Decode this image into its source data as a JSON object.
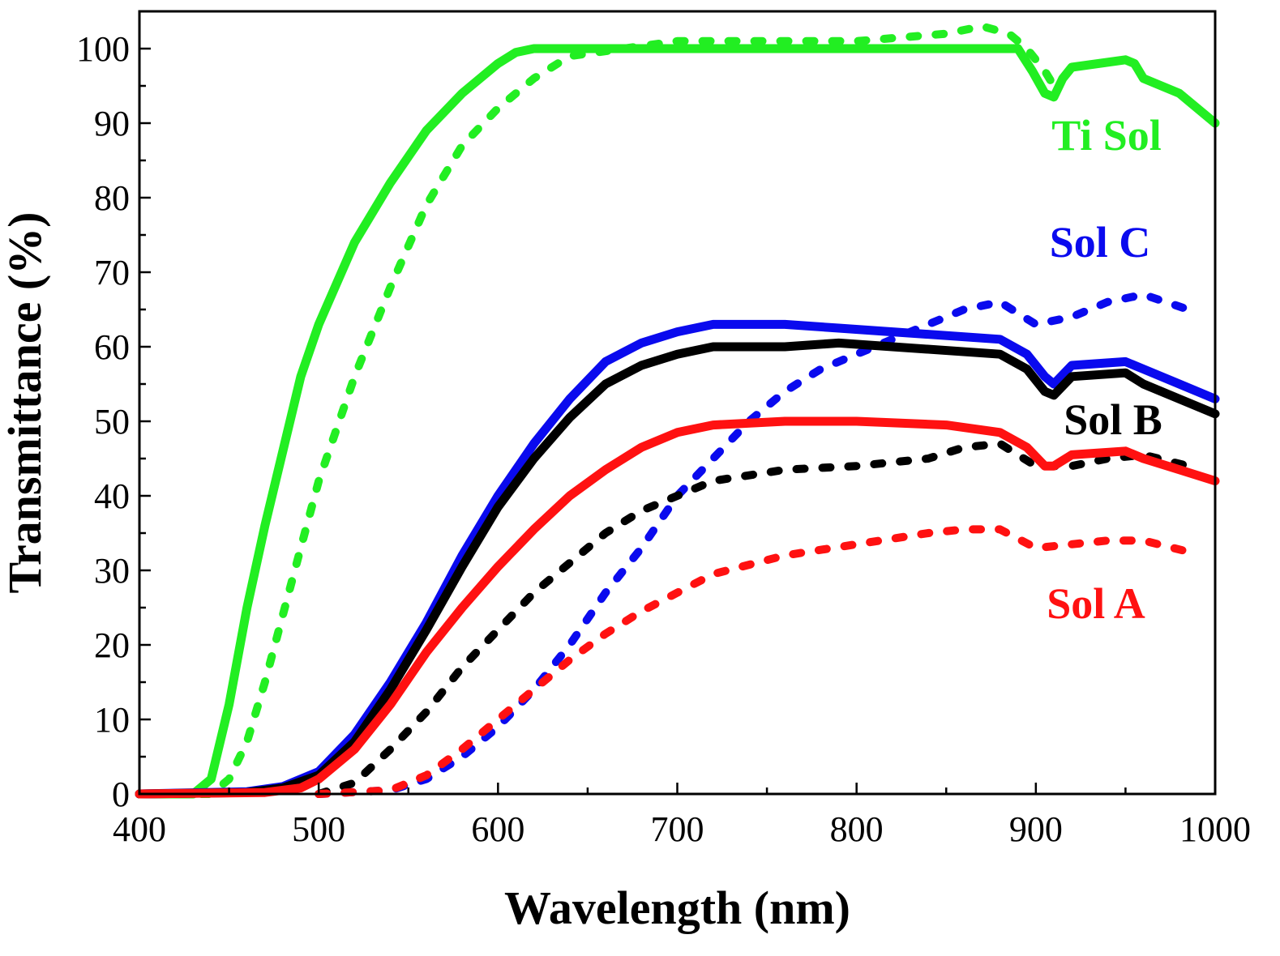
{
  "chart_data": {
    "type": "line",
    "title": "",
    "xlabel": "Wavelength (nm)",
    "ylabel": "Transmittance (%)",
    "xlim": [
      400,
      1000
    ],
    "ylim": [
      0,
      105
    ],
    "x_ticks": [
      400,
      500,
      600,
      700,
      800,
      900,
      1000
    ],
    "y_ticks": [
      0,
      10,
      20,
      30,
      40,
      50,
      60,
      70,
      80,
      90,
      100
    ],
    "grid": false,
    "legend": "none (direct labels at right)",
    "series": [
      {
        "name": "Ti Sol",
        "label": "Ti Sol",
        "color": "#22ee22",
        "solid": {
          "x": [
            400,
            430,
            440,
            450,
            460,
            470,
            480,
            490,
            500,
            520,
            540,
            560,
            580,
            600,
            610,
            620,
            700,
            800,
            890,
            898,
            905,
            910,
            915,
            920,
            950,
            955,
            960,
            980,
            1000
          ],
          "y": [
            0,
            0,
            2,
            12,
            25,
            36,
            46,
            56,
            63,
            74,
            82,
            89,
            94,
            98,
            99.5,
            100,
            100,
            100,
            100,
            97,
            94,
            93.5,
            96,
            97.5,
            98.5,
            98,
            96,
            94,
            90
          ]
        },
        "dotted": {
          "x": [
            420,
            440,
            450,
            460,
            470,
            480,
            490,
            500,
            520,
            540,
            560,
            580,
            600,
            620,
            640,
            700,
            750,
            800,
            850,
            870,
            885,
            895,
            905,
            910
          ],
          "y": [
            0,
            0,
            2,
            7,
            15,
            24,
            33,
            42,
            56,
            68,
            79,
            87,
            92,
            96,
            99,
            101,
            101,
            101,
            102,
            103,
            102,
            100,
            97,
            95
          ]
        }
      },
      {
        "name": "Sol C",
        "label": "Sol C",
        "color": "#0a0aee",
        "solid": {
          "x": [
            400,
            460,
            480,
            500,
            520,
            540,
            560,
            580,
            600,
            620,
            640,
            660,
            680,
            700,
            720,
            760,
            790,
            820,
            880,
            895,
            905,
            910,
            920,
            950,
            960,
            980,
            1000
          ],
          "y": [
            0,
            0.3,
            1,
            3,
            8,
            15,
            23,
            32,
            40,
            47,
            53,
            58,
            60.5,
            62,
            63,
            63,
            62.5,
            62,
            61,
            59,
            56,
            55,
            57.5,
            58,
            57,
            55,
            53
          ]
        },
        "dotted": {
          "x": [
            500,
            540,
            560,
            580,
            600,
            620,
            640,
            660,
            680,
            700,
            720,
            740,
            760,
            780,
            800,
            820,
            840,
            860,
            880,
            900,
            920,
            940,
            960,
            985
          ],
          "y": [
            0,
            0.5,
            2,
            5,
            9,
            14,
            20,
            27,
            33,
            40,
            45,
            50,
            54,
            57,
            59,
            61,
            63,
            65,
            66,
            63,
            64,
            66,
            67,
            65
          ]
        }
      },
      {
        "name": "Sol B",
        "label": "Sol B",
        "color": "#000000",
        "solid": {
          "x": [
            400,
            460,
            480,
            500,
            520,
            540,
            560,
            580,
            600,
            620,
            640,
            660,
            680,
            700,
            720,
            760,
            790,
            820,
            880,
            895,
            905,
            910,
            920,
            950,
            960,
            980,
            1000
          ],
          "y": [
            0,
            0.2,
            0.8,
            2.5,
            7,
            14,
            22,
            30.5,
            38.5,
            45,
            50.5,
            55,
            57.5,
            59,
            60,
            60,
            60.5,
            60,
            59,
            57,
            54,
            53.5,
            56,
            56.5,
            55,
            53,
            51
          ]
        },
        "dotted": {
          "x": [
            500,
            520,
            540,
            560,
            580,
            600,
            620,
            640,
            660,
            680,
            700,
            720,
            760,
            800,
            840,
            860,
            880,
            900,
            920,
            940,
            960,
            985
          ],
          "y": [
            0,
            1.5,
            6,
            11,
            17,
            22,
            27,
            31,
            35,
            38,
            40,
            42,
            43.5,
            44,
            45,
            46.5,
            47,
            44,
            44,
            45,
            45.5,
            44
          ]
        }
      },
      {
        "name": "Sol A",
        "label": "Sol A",
        "color": "#ff1111",
        "solid": {
          "x": [
            400,
            470,
            490,
            500,
            520,
            540,
            560,
            580,
            600,
            620,
            640,
            660,
            680,
            700,
            720,
            760,
            800,
            850,
            880,
            895,
            905,
            910,
            920,
            950,
            960,
            980,
            1000
          ],
          "y": [
            0,
            0.2,
            0.8,
            2,
            6,
            12,
            19,
            25,
            30.5,
            35.5,
            40,
            43.5,
            46.5,
            48.5,
            49.5,
            50,
            50,
            49.5,
            48.5,
            46.5,
            44,
            44,
            45.5,
            46,
            45,
            43.5,
            42
          ]
        },
        "dotted": {
          "x": [
            500,
            540,
            560,
            580,
            600,
            620,
            640,
            660,
            680,
            700,
            720,
            760,
            800,
            840,
            860,
            880,
            900,
            920,
            940,
            960,
            985
          ],
          "y": [
            0,
            0.5,
            2.5,
            6,
            10,
            14,
            18,
            21.5,
            24.5,
            27,
            29.5,
            32,
            33.5,
            35,
            35.5,
            35.5,
            33,
            33.5,
            34,
            34,
            32.5
          ]
        }
      }
    ]
  }
}
